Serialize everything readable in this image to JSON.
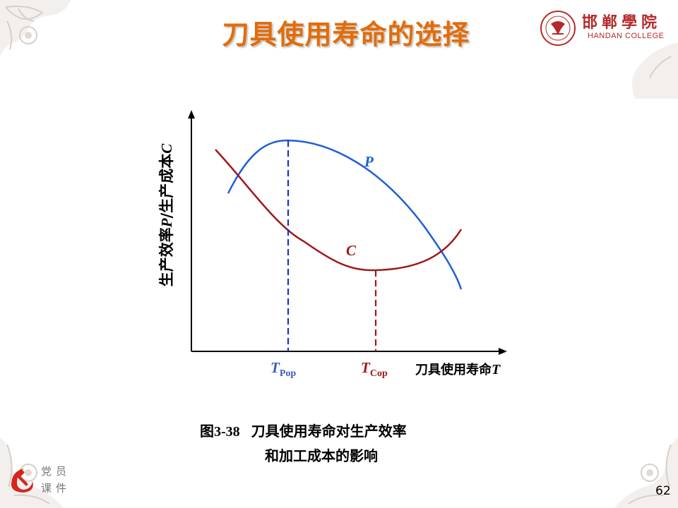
{
  "slide": {
    "title": "刀具使用寿命的选择",
    "page_number": "62"
  },
  "logo": {
    "name_cn": "邯郸學院",
    "name_en": "HANDAN COLLEGE"
  },
  "badge": {
    "line1": "党员",
    "line2": "课件"
  },
  "diagram": {
    "y_axis_label_text": "生产效率",
    "y_axis_label_p": "P",
    "y_axis_label_mid": "/生产成本",
    "y_axis_label_c": "C",
    "x_axis_label_text": "刀具使用寿命",
    "x_axis_label_t": "T",
    "curve_p_label": "P",
    "curve_c_label": "C",
    "tpop_main": "T",
    "tpop_sub": "Pop",
    "tcop_main": "T",
    "tcop_sub": "Cop",
    "colors": {
      "p_curve": "#1f5fd6",
      "c_curve": "#a01818",
      "tpop_line": "#1a2fd0",
      "tcop_line": "#a01818",
      "tpop_label": "#3a5bbf",
      "tcop_label": "#a01818"
    }
  },
  "caption": {
    "figure_number": "图3-38",
    "line1": "刀具使用寿命对生产效率",
    "line2": "和加工成本的影响"
  }
}
